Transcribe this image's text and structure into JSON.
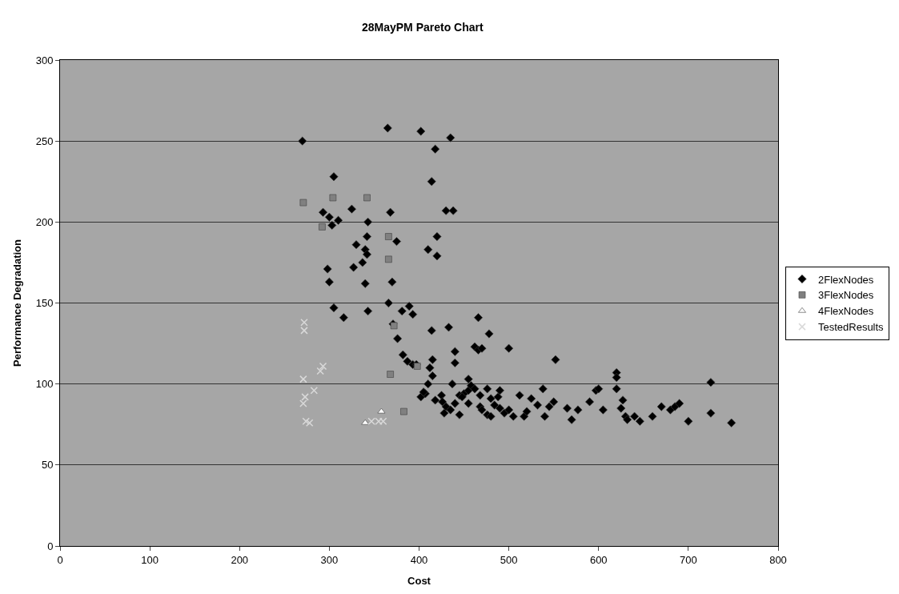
{
  "chart_data": {
    "type": "scatter",
    "title": "28MayPM Pareto Chart",
    "xlabel": "Cost",
    "ylabel": "Performance Degradation",
    "xlim": [
      0,
      800
    ],
    "xticks": [
      0,
      100,
      200,
      300,
      400,
      500,
      600,
      700,
      800
    ],
    "ylim": [
      0,
      300
    ],
    "yticks": [
      0,
      50,
      100,
      150,
      200,
      250,
      300
    ],
    "grid": "y",
    "legend": "right",
    "series": [
      {
        "name": "2FlexNodes",
        "color": "#000000",
        "marker": "diamond",
        "x": [
          270,
          365,
          402,
          435,
          418,
          414,
          305,
          325,
          430,
          438,
          368,
          420,
          420,
          343,
          293,
          300,
          310,
          303,
          342,
          340,
          342,
          330,
          327,
          337,
          298,
          300,
          316,
          305,
          340,
          343,
          366,
          370,
          375,
          389,
          381,
          393,
          371,
          376,
          382,
          387,
          393,
          410,
          414,
          415,
          415,
          412,
          433,
          440,
          440,
          466,
          478,
          462,
          466,
          470,
          500,
          552,
          620,
          620,
          725,
          402,
          407,
          418,
          425,
          426,
          430,
          435,
          440,
          445,
          445,
          450,
          455,
          455,
          458,
          462,
          468,
          470,
          476,
          480,
          484,
          488,
          490,
          495,
          500,
          505,
          512,
          517,
          520,
          525,
          532,
          538,
          540,
          545,
          550,
          565,
          570,
          577,
          590,
          597,
          600,
          605,
          620,
          625,
          627,
          630,
          632,
          640,
          646,
          660,
          670,
          680,
          685,
          690,
          700,
          725,
          748,
          428,
          410,
          397,
          405,
          437,
          448,
          476,
          468,
          455,
          480,
          490
        ],
        "values": [
          250,
          258,
          256,
          252,
          245,
          225,
          228,
          208,
          207,
          207,
          206,
          191,
          179,
          200,
          206,
          203,
          201,
          198,
          191,
          183,
          180,
          186,
          172,
          175,
          171,
          163,
          141,
          147,
          162,
          145,
          150,
          163,
          188,
          148,
          145,
          143,
          137,
          128,
          118,
          114,
          112,
          183,
          133,
          115,
          105,
          110,
          135,
          120,
          113,
          141,
          131,
          123,
          121,
          122,
          122,
          115,
          107,
          104,
          101,
          92,
          94,
          90,
          93,
          89,
          86,
          84,
          88,
          81,
          93,
          94,
          96,
          103,
          99,
          97,
          86,
          84,
          81,
          80,
          87,
          92,
          85,
          82,
          84,
          80,
          93,
          80,
          83,
          91,
          87,
          97,
          80,
          86,
          89,
          85,
          78,
          84,
          89,
          96,
          97,
          84,
          97,
          85,
          90,
          80,
          78,
          80,
          77,
          80,
          86,
          84,
          86,
          88,
          77,
          82,
          76,
          82,
          100,
          112,
          95,
          100,
          92,
          97,
          93,
          88,
          91,
          96
        ]
      },
      {
        "name": "3FlexNodes",
        "color": "#808080",
        "marker": "square",
        "x": [
          271,
          304,
          342,
          292,
          366,
          366,
          372,
          368,
          398,
          383
        ],
        "values": [
          212,
          215,
          215,
          197,
          191,
          177,
          136,
          106,
          111,
          83
        ]
      },
      {
        "name": "4FlexNodes",
        "color": "#ffffff",
        "marker": "triangle",
        "x": [
          340,
          358
        ],
        "values": [
          76,
          83
        ]
      },
      {
        "name": "TestedResults",
        "color": "#d9d9d9",
        "marker": "cross",
        "x": [
          272,
          272,
          271,
          273,
          271,
          274,
          278,
          283,
          290,
          293,
          347,
          355,
          360
        ],
        "values": [
          138,
          133,
          103,
          92,
          88,
          77,
          76,
          96,
          108,
          111,
          77,
          77,
          77
        ]
      }
    ]
  }
}
